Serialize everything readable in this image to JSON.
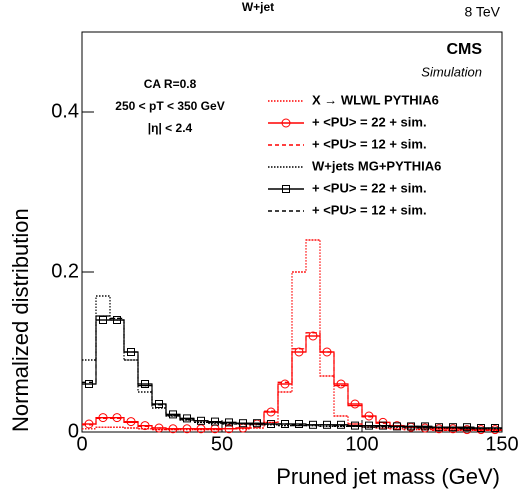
{
  "chart_data": {
    "type": "histogram",
    "title": "W+jet",
    "energy": "8 TeV",
    "experiment": "CMS",
    "status": "Simulation",
    "annotations": [
      "CA R=0.8",
      "250 < pT < 350 GeV",
      "|η| < 2.4"
    ],
    "x_label": "Pruned jet mass (GeV)",
    "y_label": "Normalized distribution",
    "xlim": [
      0,
      150
    ],
    "ylim": [
      0,
      0.5
    ],
    "xticks": [
      0,
      50,
      100,
      150
    ],
    "yticks": [
      0,
      0.2,
      0.4
    ],
    "bins": [
      0,
      5,
      10,
      15,
      20,
      25,
      30,
      35,
      40,
      45,
      50,
      55,
      60,
      65,
      70,
      75,
      80,
      85,
      90,
      95,
      100,
      105,
      110,
      115,
      120,
      125,
      130,
      135,
      140,
      145,
      150
    ],
    "series": [
      {
        "name": "X → WLWL PYTHIA6",
        "color": "#ff0000",
        "dash": "dotted",
        "values": [
          0.004,
          0.006,
          0.006,
          0.005,
          0.004,
          0.003,
          0.003,
          0.003,
          0.003,
          0.003,
          0.004,
          0.004,
          0.005,
          0.012,
          0.05,
          0.2,
          0.24,
          0.07,
          0.02,
          0.01,
          0.006,
          0.005,
          0.004,
          0.003,
          0.003,
          0.002,
          0.002,
          0.002,
          0.002,
          0.002
        ]
      },
      {
        "name": "+ <PU> = 22 + sim.",
        "color": "#ff0000",
        "dash": "solid",
        "marker": "circle",
        "values": [
          0.01,
          0.018,
          0.018,
          0.013,
          0.008,
          0.005,
          0.004,
          0.004,
          0.004,
          0.004,
          0.004,
          0.005,
          0.01,
          0.025,
          0.06,
          0.1,
          0.12,
          0.1,
          0.06,
          0.035,
          0.02,
          0.012,
          0.008,
          0.006,
          0.005,
          0.004,
          0.004,
          0.003,
          0.003,
          0.003
        ]
      },
      {
        "name": "+ <PU> = 12 + sim.",
        "color": "#ff0000",
        "dash": "dashed",
        "values": [
          0.009,
          0.017,
          0.017,
          0.012,
          0.007,
          0.005,
          0.004,
          0.004,
          0.004,
          0.004,
          0.004,
          0.005,
          0.01,
          0.026,
          0.062,
          0.104,
          0.124,
          0.1,
          0.058,
          0.033,
          0.019,
          0.011,
          0.008,
          0.006,
          0.005,
          0.004,
          0.004,
          0.003,
          0.003,
          0.003
        ]
      },
      {
        "name": "W+jets MG+PYTHIA6",
        "color": "#000000",
        "dash": "dotted",
        "values": [
          0.09,
          0.17,
          0.14,
          0.09,
          0.05,
          0.03,
          0.02,
          0.015,
          0.012,
          0.011,
          0.01,
          0.01,
          0.009,
          0.009,
          0.008,
          0.008,
          0.008,
          0.007,
          0.007,
          0.007,
          0.006,
          0.006,
          0.006,
          0.005,
          0.005,
          0.005,
          0.005,
          0.004,
          0.004,
          0.004
        ]
      },
      {
        "name": "+ <PU> = 22 + sim.",
        "color": "#000000",
        "dash": "solid",
        "marker": "square",
        "values": [
          0.06,
          0.14,
          0.14,
          0.1,
          0.06,
          0.035,
          0.022,
          0.017,
          0.014,
          0.013,
          0.012,
          0.011,
          0.011,
          0.01,
          0.01,
          0.01,
          0.009,
          0.009,
          0.009,
          0.008,
          0.008,
          0.008,
          0.007,
          0.007,
          0.007,
          0.006,
          0.006,
          0.006,
          0.005,
          0.005
        ]
      },
      {
        "name": "+ <PU> = 12 + sim.",
        "color": "#000000",
        "dash": "dashed",
        "values": [
          0.062,
          0.145,
          0.142,
          0.1,
          0.058,
          0.034,
          0.021,
          0.016,
          0.014,
          0.012,
          0.011,
          0.011,
          0.01,
          0.01,
          0.01,
          0.009,
          0.009,
          0.009,
          0.008,
          0.008,
          0.008,
          0.007,
          0.007,
          0.007,
          0.006,
          0.006,
          0.006,
          0.005,
          0.005,
          0.005
        ]
      }
    ]
  }
}
